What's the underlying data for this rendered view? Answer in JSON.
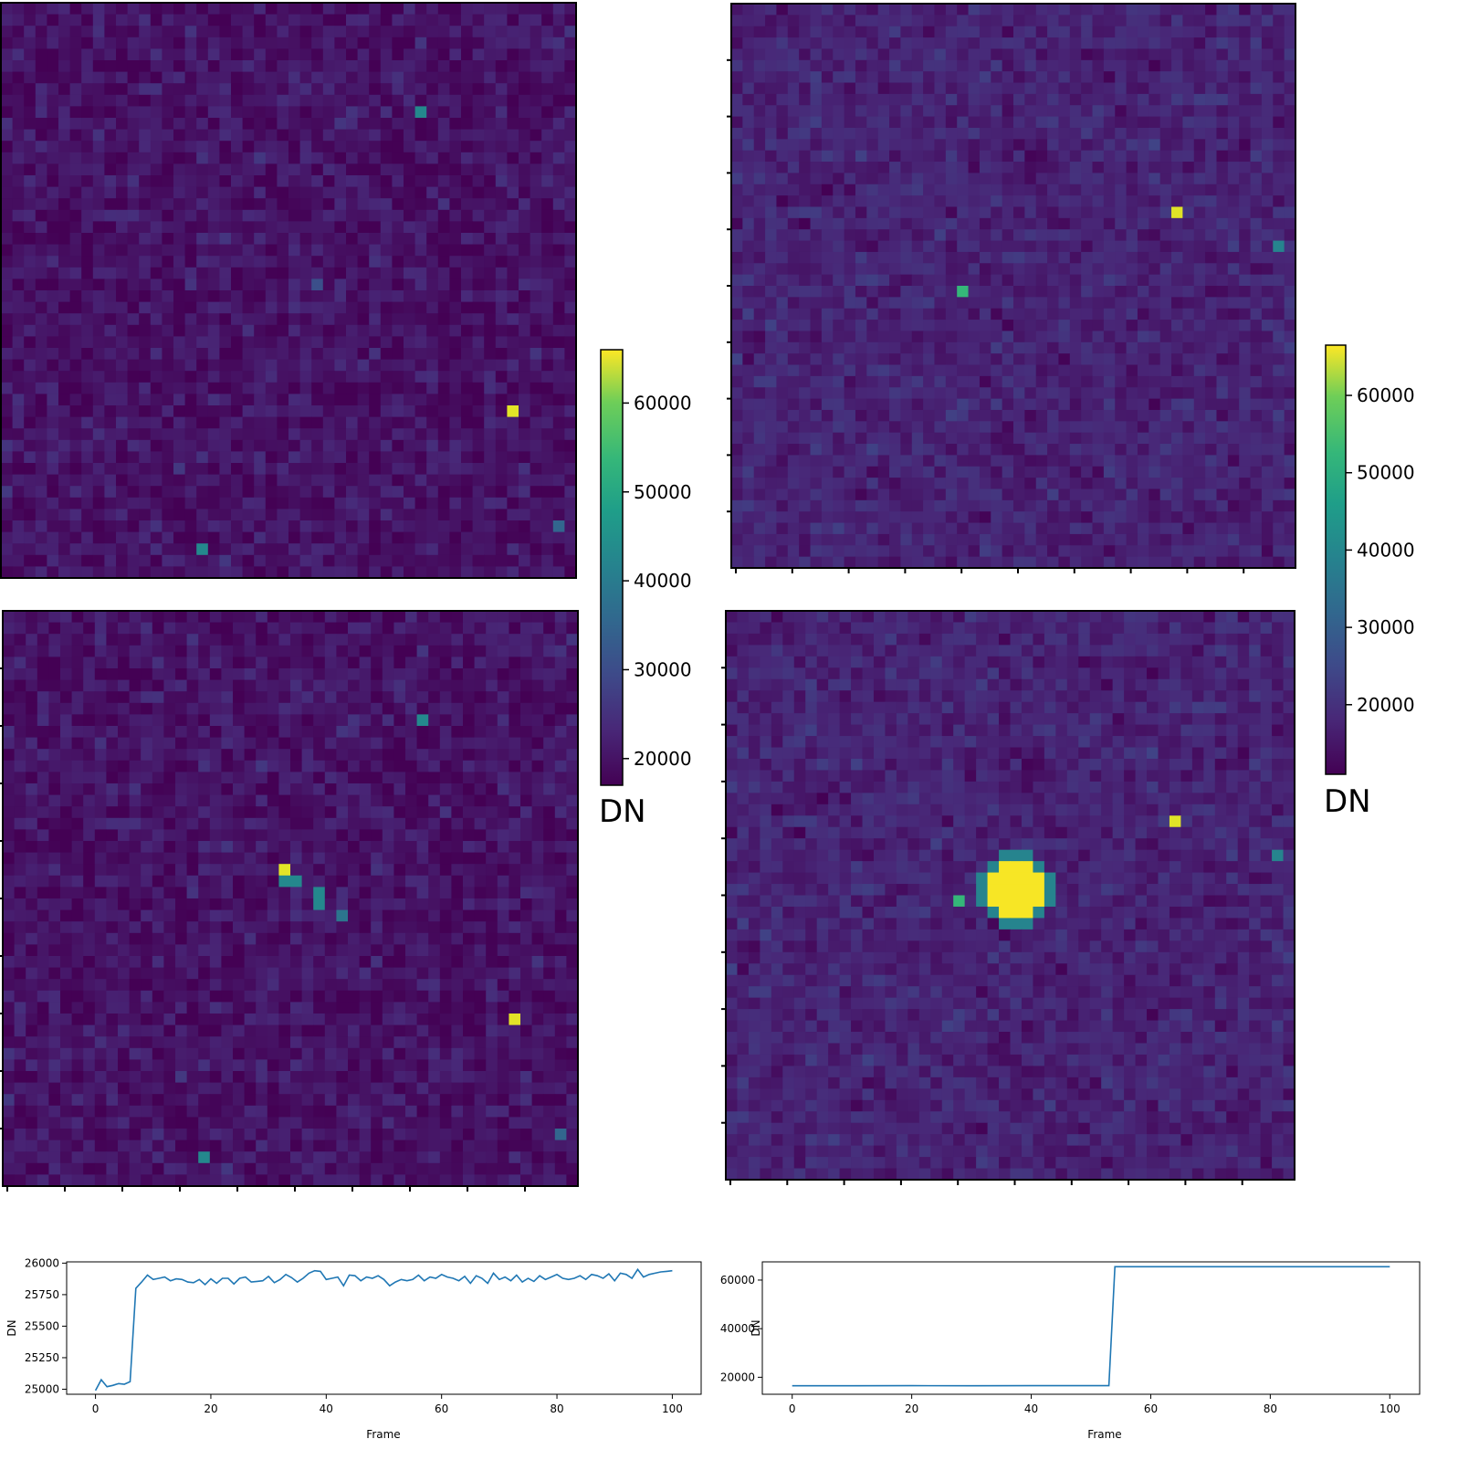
{
  "colorbars": [
    {
      "label": "DN",
      "vmin": 17000,
      "vmax": 66000,
      "ticks": [
        20000,
        30000,
        40000,
        50000,
        60000
      ],
      "tick_labels": [
        "20000",
        "30000",
        "40000",
        "50000",
        "60000"
      ]
    },
    {
      "label": "DN",
      "vmin": 11000,
      "vmax": 66500,
      "ticks": [
        20000,
        30000,
        40000,
        50000,
        60000
      ],
      "tick_labels": [
        "20000",
        "30000",
        "40000",
        "50000",
        "60000"
      ]
    }
  ],
  "colors": {
    "viridis_low": "#440154",
    "background_pixel": "#3b2e7d",
    "viridis_mid": "#21918c",
    "viridis_high": "#fde725",
    "line": "#1f77b4"
  },
  "chart_data": [
    {
      "type": "heatmap",
      "grid": [
        50,
        50
      ],
      "colormap": "viridis",
      "background_dn": 19500,
      "hot_pixels": [
        {
          "col": 36,
          "row": 9,
          "value": 40000
        },
        {
          "col": 27,
          "row": 24,
          "value": 29000
        },
        {
          "col": 44,
          "row": 35,
          "value": 64000
        },
        {
          "col": 17,
          "row": 47,
          "value": 40000
        },
        {
          "col": 48,
          "row": 45,
          "value": 33000
        }
      ]
    },
    {
      "type": "heatmap",
      "grid": [
        50,
        50
      ],
      "colormap": "viridis",
      "background_dn": 19500,
      "hot_pixels": [
        {
          "col": 36,
          "row": 9,
          "value": 40000
        },
        {
          "col": 44,
          "row": 35,
          "value": 64000
        },
        {
          "col": 17,
          "row": 47,
          "value": 40000
        },
        {
          "col": 48,
          "row": 45,
          "value": 33000
        },
        {
          "col": 24,
          "row": 22,
          "value": 64000
        },
        {
          "col": 24,
          "row": 23,
          "value": 40000
        },
        {
          "col": 25,
          "row": 23,
          "value": 40000
        },
        {
          "col": 27,
          "row": 24,
          "value": 40000
        },
        {
          "col": 27,
          "row": 25,
          "value": 40000
        },
        {
          "col": 29,
          "row": 26,
          "value": 36000
        }
      ]
    },
    {
      "type": "heatmap",
      "grid": [
        50,
        50
      ],
      "colormap": "viridis",
      "background_dn": 16500,
      "hot_pixels": [
        {
          "col": 39,
          "row": 18,
          "value": 64000
        },
        {
          "col": 20,
          "row": 25,
          "value": 48000
        },
        {
          "col": 48,
          "row": 21,
          "value": 36000
        }
      ]
    },
    {
      "type": "heatmap",
      "grid": [
        50,
        50
      ],
      "colormap": "viridis",
      "background_dn": 16500,
      "hot_pixels": [
        {
          "col": 39,
          "row": 18,
          "value": 64000
        },
        {
          "col": 20,
          "row": 25,
          "value": 48000
        },
        {
          "col": 48,
          "row": 21,
          "value": 36000
        }
      ],
      "source": {
        "col": 25.5,
        "row": 24.5,
        "radius": 2.6,
        "value": 66000
      }
    },
    {
      "type": "line",
      "xlabel": "Frame",
      "ylabel": "DN",
      "xlim": [
        -5,
        105
      ],
      "ylim": [
        24960,
        26010
      ],
      "xticks": [
        0,
        20,
        40,
        60,
        80,
        100
      ],
      "yticks": [
        25000,
        25250,
        25500,
        25750,
        26000
      ],
      "series": [
        {
          "x": [
            0,
            1,
            2,
            3,
            4,
            5,
            6,
            7,
            8,
            9,
            10,
            11,
            12,
            13,
            14,
            15,
            16,
            17,
            18,
            19,
            20,
            21,
            22,
            23,
            24,
            25,
            26,
            27,
            28,
            29,
            30,
            31,
            32,
            33,
            34,
            35,
            36,
            37,
            38,
            39,
            40,
            41,
            42,
            43,
            44,
            45,
            46,
            47,
            48,
            49,
            50,
            51,
            52,
            53,
            54,
            55,
            56,
            57,
            58,
            59,
            60,
            61,
            62,
            63,
            64,
            65,
            66,
            67,
            68,
            69,
            70,
            71,
            72,
            73,
            74,
            75,
            76,
            77,
            78,
            79,
            80,
            81,
            82,
            83,
            84,
            85,
            86,
            87,
            88,
            89,
            90,
            91,
            92,
            93,
            94,
            95,
            96,
            97,
            98,
            99,
            100
          ],
          "y": [
            24990,
            25075,
            25020,
            25030,
            25045,
            25040,
            25060,
            25800,
            25850,
            25905,
            25870,
            25880,
            25890,
            25860,
            25875,
            25870,
            25850,
            25845,
            25870,
            25830,
            25875,
            25840,
            25880,
            25880,
            25835,
            25880,
            25890,
            25850,
            25855,
            25860,
            25895,
            25845,
            25870,
            25910,
            25885,
            25850,
            25880,
            25920,
            25940,
            25935,
            25870,
            25880,
            25890,
            25820,
            25905,
            25900,
            25860,
            25890,
            25880,
            25900,
            25870,
            25820,
            25850,
            25870,
            25860,
            25870,
            25905,
            25860,
            25890,
            25880,
            25910,
            25890,
            25880,
            25860,
            25895,
            25840,
            25900,
            25880,
            25840,
            25920,
            25870,
            25890,
            25860,
            25905,
            25850,
            25880,
            25855,
            25900,
            25870,
            25890,
            25910,
            25880,
            25870,
            25880,
            25900,
            25870,
            25910,
            25900,
            25880,
            25915,
            25860,
            25920,
            25910,
            25880,
            25950,
            25890,
            25910,
            25920,
            25930,
            25935,
            25940
          ]
        }
      ]
    },
    {
      "type": "line",
      "xlabel": "Frame",
      "ylabel": "DN",
      "xlim": [
        -5,
        105
      ],
      "ylim": [
        13000,
        67500
      ],
      "xticks": [
        0,
        20,
        40,
        60,
        80,
        100
      ],
      "yticks": [
        20000,
        40000,
        60000
      ],
      "series": [
        {
          "x": [
            0,
            10,
            20,
            30,
            40,
            52,
            53,
            54,
            60,
            70,
            80,
            90,
            100
          ],
          "y": [
            16500,
            16500,
            16550,
            16500,
            16550,
            16550,
            16550,
            65500,
            65500,
            65500,
            65500,
            65500,
            65500
          ]
        }
      ]
    }
  ]
}
